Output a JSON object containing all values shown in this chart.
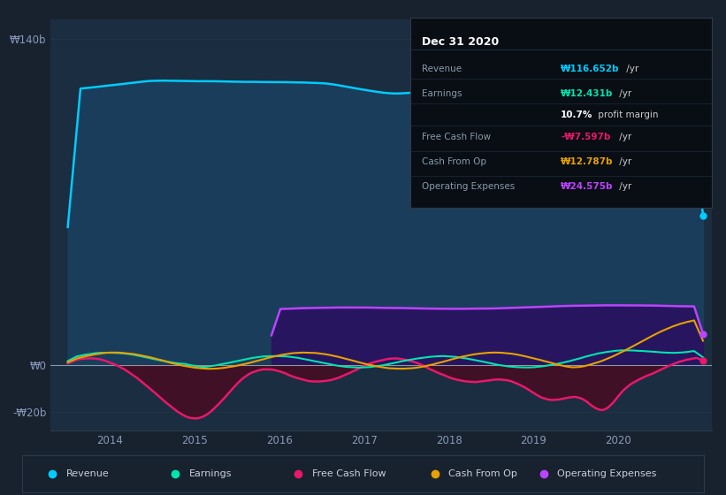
{
  "bg_color": "#18222e",
  "plot_bg_color": "#1b2d40",
  "grid_color": "#253545",
  "ylim_min": -28,
  "ylim_max": 148,
  "yticks_vals": [
    -20,
    0,
    140
  ],
  "ytick_labels": [
    "-₩20b",
    "₩0",
    "₩140b"
  ],
  "xticks": [
    2014,
    2015,
    2016,
    2017,
    2018,
    2019,
    2020
  ],
  "xlim_min": 2013.3,
  "xlim_max": 2021.1,
  "revenue_line_color": "#00ccff",
  "revenue_fill_color": "#1a4060",
  "earnings_line_color": "#00e5b0",
  "fcf_line_color": "#e8186a",
  "fcf_fill_color": "#4a0a20",
  "cashop_line_color": "#e8a000",
  "opex_line_color": "#bb44ff",
  "opex_fill_color": "#2a1060",
  "zero_line_color": "#8899aa",
  "info_box_bg": "#080e14",
  "info_box_border": "#303a45",
  "title_text": "Dec 31 2020",
  "info_rows": [
    {
      "label": "Revenue",
      "value_colored": "₩116.652b",
      "value_plain": " /yr",
      "color": "#00ccff"
    },
    {
      "label": "Earnings",
      "value_colored": "₩12.431b",
      "value_plain": " /yr",
      "color": "#00e5b0"
    },
    {
      "label": "",
      "value_colored": "10.7%",
      "value_plain": " profit margin",
      "color": "#ffffff"
    },
    {
      "label": "Free Cash Flow",
      "value_colored": "-₩7.597b",
      "value_plain": " /yr",
      "color": "#e8186a"
    },
    {
      "label": "Cash From Op",
      "value_colored": "₩12.787b",
      "value_plain": " /yr",
      "color": "#e8a000"
    },
    {
      "label": "Operating Expenses",
      "value_colored": "₩24.575b",
      "value_plain": " /yr",
      "color": "#bb44ff"
    }
  ],
  "legend_items": [
    {
      "label": "Revenue",
      "color": "#00ccff"
    },
    {
      "label": "Earnings",
      "color": "#00e5b0"
    },
    {
      "label": "Free Cash Flow",
      "color": "#e8186a"
    },
    {
      "label": "Cash From Op",
      "color": "#e8a000"
    },
    {
      "label": "Operating Expenses",
      "color": "#bb44ff"
    }
  ],
  "opex_start": 2015.9
}
